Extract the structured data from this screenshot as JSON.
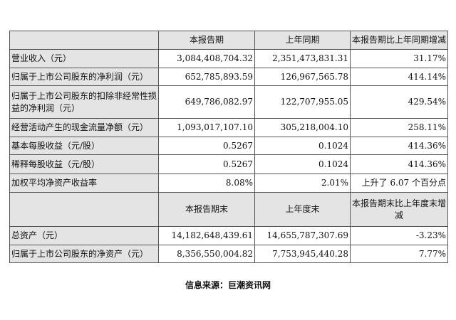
{
  "table1": {
    "headers": [
      "",
      "本报告期",
      "上年同期",
      "本报告期比上年同期增减"
    ],
    "rows": [
      [
        "营业收入（元）",
        "3,084,408,704.32",
        "2,351,473,831.31",
        "31.17%"
      ],
      [
        "归属于上市公司股东的净利润（元）",
        "652,785,893.59",
        "126,967,565.78",
        "414.14%"
      ],
      [
        "归属于上市公司股东的扣除非经常性损益的净利润（元）",
        "649,786,082.97",
        "122,707,955.05",
        "429.54%"
      ],
      [
        "经营活动产生的现金流量净额（元）",
        "1,093,017,107.10",
        "305,218,004.10",
        "258.11%"
      ],
      [
        "基本每股收益（元/股）",
        "0.5267",
        "0.1024",
        "414.36%"
      ],
      [
        "稀释每股收益（元/股）",
        "0.5267",
        "0.1024",
        "414.36%"
      ],
      [
        "加权平均净资产收益率",
        "8.08%",
        "2.01%",
        "上升了 6.07 个百分点"
      ]
    ]
  },
  "table2": {
    "headers": [
      "",
      "本报告期末",
      "上年度末",
      "本报告期末比上年度末增减"
    ],
    "rows": [
      [
        "总资产（元）",
        "14,182,648,439.61",
        "14,655,787,307.69",
        "-3.23%"
      ],
      [
        "归属于上市公司股东的净资产（元）",
        "8,356,550,004.82",
        "7,753,945,440.28",
        "7.77%"
      ]
    ]
  },
  "source": "信息来源：巨潮资讯网"
}
